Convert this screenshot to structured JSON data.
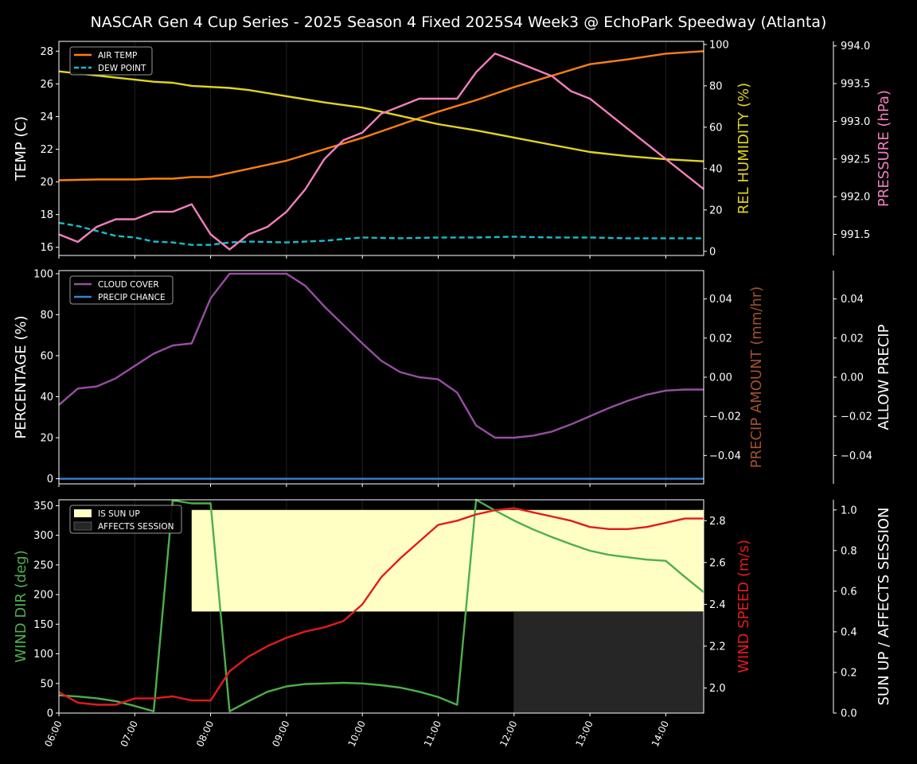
{
  "title": "NASCAR Gen 4 Cup Series - 2025 Season 4 Fixed 2025S4 Week3 @ EchoPark Speedway (Atlanta)",
  "x_ticks": [
    "06:00",
    "07:00",
    "08:00",
    "09:00",
    "10:00",
    "11:00",
    "12:00",
    "13:00",
    "14:00"
  ],
  "colors": {
    "air_temp": "#ff7f0e",
    "dew_point": "#17becf",
    "rel_humidity": "#e2d51c",
    "pressure": "#f27fbd",
    "cloud": "#984ea3",
    "precip_chance": "#3a7fd5",
    "precip_amount": "#a0522d",
    "sun_up": "#ffffc4",
    "affects": "#262626",
    "wind_dir": "#4daf4a",
    "wind_speed": "#e41a1c"
  },
  "chart_data": [
    {
      "type": "line",
      "x_unit": "hour",
      "axes": {
        "left": {
          "label": "TEMP (C)",
          "ylim": [
            15.5,
            28.6
          ],
          "ticks": [
            "16",
            "18",
            "20",
            "22",
            "24",
            "26",
            "28"
          ]
        },
        "right1": {
          "label": "REL HUMIDITY (%)",
          "ylim": [
            -2,
            101.5
          ],
          "ticks": [
            "0",
            "20",
            "40",
            "60",
            "80",
            "100"
          ]
        },
        "right2": {
          "label": "PRESSURE (hPa)",
          "ylim": [
            991.22,
            994.06
          ],
          "ticks": [
            "991.5",
            "992.0",
            "992.5",
            "993.0",
            "993.5",
            "994.0"
          ]
        }
      },
      "legend": [
        "AIR TEMP",
        "DEW POINT"
      ],
      "legend_placement": "top-left",
      "series": [
        {
          "name": "AIR TEMP",
          "axis": "left",
          "style": "solid",
          "x": [
            6,
            6.5,
            7,
            7.25,
            7.5,
            7.75,
            8,
            8.5,
            9,
            9.5,
            10,
            10.5,
            11,
            11.5,
            12,
            12.5,
            13,
            13.5,
            14,
            14.5
          ],
          "values": [
            20.1,
            20.15,
            20.15,
            20.2,
            20.2,
            20.3,
            20.3,
            20.8,
            21.3,
            22.0,
            22.7,
            23.5,
            24.3,
            25.0,
            25.8,
            26.5,
            27.2,
            27.5,
            27.85,
            28.0
          ]
        },
        {
          "name": "DEW POINT",
          "axis": "left",
          "style": "dashed",
          "x": [
            6,
            6.25,
            6.5,
            6.75,
            7,
            7.25,
            7.5,
            7.75,
            8,
            8.25,
            8.5,
            9,
            9.5,
            10,
            10.5,
            11,
            11.5,
            12,
            12.5,
            13,
            13.5,
            14,
            14.5
          ],
          "values": [
            17.5,
            17.3,
            17.0,
            16.7,
            16.6,
            16.35,
            16.3,
            16.15,
            16.15,
            16.3,
            16.35,
            16.3,
            16.4,
            16.6,
            16.55,
            16.6,
            16.6,
            16.65,
            16.6,
            16.6,
            16.55,
            16.55,
            16.55
          ]
        },
        {
          "name": "",
          "axis": "right1",
          "style": "solid",
          "color_key": "rel_humidity",
          "x": [
            6,
            6.5,
            7,
            7.25,
            7.5,
            7.75,
            8,
            8.25,
            8.5,
            8.75,
            9,
            9.5,
            10,
            10.5,
            11,
            11.5,
            12,
            12.5,
            13,
            13.5,
            14,
            14.5
          ],
          "values": [
            87,
            85,
            83,
            82,
            81.5,
            80,
            79.5,
            79,
            78,
            76.5,
            75,
            72,
            69.5,
            65.5,
            61.5,
            58.5,
            55,
            51.5,
            48,
            46,
            44.5,
            43.5
          ]
        },
        {
          "name": "",
          "axis": "right2",
          "style": "solid",
          "color_key": "pressure",
          "x": [
            6,
            6.25,
            6.5,
            6.75,
            7,
            7.25,
            7.5,
            7.75,
            8,
            8.25,
            8.5,
            8.75,
            9,
            9.25,
            9.5,
            9.75,
            10,
            10.25,
            10.5,
            10.75,
            11,
            11.25,
            11.5,
            11.75,
            12,
            12.25,
            12.5,
            12.75,
            13,
            13.25,
            13.5,
            13.75,
            14,
            14.25,
            14.5
          ],
          "values": [
            991.5,
            991.4,
            991.6,
            991.7,
            991.7,
            991.8,
            991.8,
            991.9,
            991.5,
            991.3,
            991.5,
            991.6,
            991.8,
            992.1,
            992.5,
            992.75,
            992.85,
            993.1,
            993.2,
            993.3,
            993.3,
            993.3,
            993.65,
            993.9,
            993.8,
            993.7,
            993.6,
            993.4,
            993.3,
            993.1,
            992.9,
            992.7,
            992.5,
            992.3,
            992.1
          ]
        }
      ]
    },
    {
      "type": "line",
      "x_unit": "hour",
      "axes": {
        "left": {
          "label": "PERCENTAGE (%)",
          "ylim": [
            -2.5,
            101.5
          ],
          "ticks": [
            "0",
            "20",
            "40",
            "60",
            "80",
            "100"
          ]
        },
        "right1": {
          "label": "PRECIP AMOUNT (mm/hr)",
          "ylim": [
            -0.0545,
            0.0545
          ],
          "ticks": [
            "−0.04",
            "−0.02",
            "0.00",
            "0.02",
            "0.04"
          ]
        },
        "right2": {
          "label": "ALLOW PRECIP",
          "ylim": [
            -0.0545,
            0.0545
          ],
          "ticks": [
            "−0.04",
            "−0.02",
            "0.00",
            "0.02",
            "0.04"
          ]
        }
      },
      "legend": [
        "CLOUD COVER",
        "PRECIP CHANCE"
      ],
      "legend_placement": "top-left",
      "series": [
        {
          "name": "CLOUD COVER",
          "axis": "left",
          "style": "solid",
          "x": [
            6,
            6.25,
            6.5,
            6.75,
            7,
            7.25,
            7.5,
            7.75,
            8,
            8.25,
            8.5,
            9,
            9.25,
            9.5,
            9.75,
            10,
            10.25,
            10.5,
            10.75,
            11,
            11.25,
            11.5,
            11.75,
            12,
            12.25,
            12.5,
            12.75,
            13,
            13.25,
            13.5,
            13.75,
            14,
            14.25,
            14.5
          ],
          "values": [
            36,
            44,
            45,
            49,
            55,
            61,
            65,
            66,
            88,
            100,
            100,
            100,
            94,
            84,
            75,
            66,
            57.5,
            52,
            49.5,
            48.5,
            42,
            26,
            20,
            20,
            21,
            23,
            26.5,
            30.5,
            34.5,
            38,
            41,
            43,
            43.5,
            43.5
          ]
        },
        {
          "name": "PRECIP CHANCE",
          "axis": "left",
          "style": "solid",
          "x": [
            6,
            14.5
          ],
          "values": [
            0,
            0
          ]
        }
      ]
    },
    {
      "type": "line",
      "x_unit": "hour",
      "axes": {
        "left": {
          "label": "WIND DIR (deg)",
          "ylim": [
            0,
            360
          ],
          "ticks": [
            "0",
            "50",
            "100",
            "150",
            "200",
            "250",
            "300",
            "350"
          ]
        },
        "right1": {
          "label": "WIND SPEED (m/s)",
          "ylim": [
            1.88,
            2.9
          ],
          "ticks": [
            "2.0",
            "2.2",
            "2.4",
            "2.6",
            "2.8"
          ]
        },
        "right2": {
          "label": "SUN UP / AFFECTS SESSION",
          "ylim": [
            0,
            1.05
          ],
          "ticks": [
            "0.0",
            "0.2",
            "0.4",
            "0.6",
            "0.8",
            "1.0"
          ]
        }
      },
      "legend": [
        "IS SUN UP",
        "AFFECTS SESSION"
      ],
      "legend_placement": "top-left",
      "bands": [
        {
          "name": "IS SUN UP",
          "axis": "right2",
          "x": [
            7.75,
            14.5
          ],
          "y": [
            0.5,
            1.0
          ]
        },
        {
          "name": "AFFECTS SESSION",
          "axis": "right2",
          "x": [
            12.0,
            14.5
          ],
          "y": [
            0,
            0.5
          ]
        }
      ],
      "series": [
        {
          "name": "",
          "axis": "left",
          "style": "solid",
          "color_key": "wind_dir",
          "x": [
            6,
            6.25,
            6.5,
            6.75,
            7,
            7.25,
            7.5,
            7.75,
            8,
            8.25,
            8.5,
            8.75,
            9,
            9.25,
            9.5,
            9.75,
            10,
            10.25,
            10.5,
            10.75,
            11,
            11.25,
            11.5,
            11.75,
            12,
            12.25,
            12.5,
            12.75,
            13,
            13.25,
            13.5,
            13.75,
            14,
            14.25,
            14.5
          ],
          "values": [
            30,
            28,
            25,
            20,
            12,
            3,
            359,
            354,
            354,
            3,
            20,
            36,
            45,
            49,
            50,
            51,
            50,
            47,
            43,
            36,
            27,
            14,
            360,
            342,
            325,
            310,
            297,
            285,
            274,
            267,
            263,
            259,
            257,
            230,
            204
          ]
        },
        {
          "name": "",
          "axis": "right1",
          "style": "solid",
          "color_key": "wind_speed",
          "x": [
            6,
            6.25,
            6.5,
            6.75,
            7,
            7.25,
            7.5,
            7.75,
            8,
            8.25,
            8.5,
            8.75,
            9,
            9.25,
            9.5,
            9.75,
            10,
            10.25,
            10.5,
            10.75,
            11,
            11.25,
            11.5,
            11.75,
            12,
            12.25,
            12.5,
            12.75,
            13,
            13.25,
            13.5,
            13.75,
            14,
            14.25,
            14.5
          ],
          "values": [
            1.98,
            1.93,
            1.92,
            1.92,
            1.95,
            1.95,
            1.96,
            1.94,
            1.94,
            2.08,
            2.15,
            2.2,
            2.24,
            2.27,
            2.29,
            2.32,
            2.4,
            2.53,
            2.62,
            2.7,
            2.78,
            2.8,
            2.83,
            2.85,
            2.86,
            2.84,
            2.82,
            2.8,
            2.77,
            2.76,
            2.76,
            2.77,
            2.79,
            2.81,
            2.81
          ]
        }
      ]
    }
  ]
}
